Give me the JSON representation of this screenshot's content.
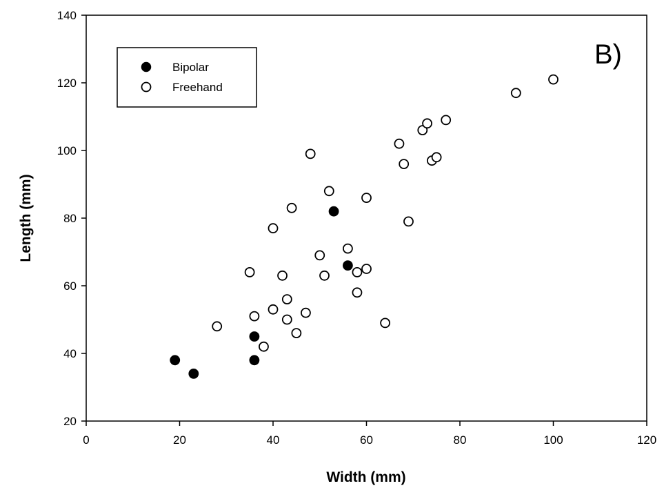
{
  "chart_data": {
    "type": "scatter",
    "panel_label": "B)",
    "xlabel": "Width (mm)",
    "ylabel": "Length (mm)",
    "xlim": [
      0,
      120
    ],
    "ylim": [
      20,
      140
    ],
    "xticks": [
      0,
      20,
      40,
      60,
      80,
      100,
      120
    ],
    "yticks": [
      20,
      40,
      60,
      80,
      100,
      120,
      140
    ],
    "grid": false,
    "legend_position": "top-left",
    "series": [
      {
        "name": "Bipolar",
        "marker": "filled-circle",
        "color": "#000000",
        "points": [
          {
            "x": 19,
            "y": 38
          },
          {
            "x": 23,
            "y": 34
          },
          {
            "x": 36,
            "y": 45
          },
          {
            "x": 36,
            "y": 38
          },
          {
            "x": 53,
            "y": 82
          },
          {
            "x": 56,
            "y": 66
          }
        ]
      },
      {
        "name": "Freehand",
        "marker": "open-circle",
        "color": "#000000",
        "points": [
          {
            "x": 28,
            "y": 48
          },
          {
            "x": 35,
            "y": 64
          },
          {
            "x": 36,
            "y": 51
          },
          {
            "x": 38,
            "y": 42
          },
          {
            "x": 40,
            "y": 77
          },
          {
            "x": 40,
            "y": 53
          },
          {
            "x": 42,
            "y": 63
          },
          {
            "x": 43,
            "y": 56
          },
          {
            "x": 43,
            "y": 50
          },
          {
            "x": 44,
            "y": 83
          },
          {
            "x": 45,
            "y": 46
          },
          {
            "x": 47,
            "y": 52
          },
          {
            "x": 48,
            "y": 99
          },
          {
            "x": 50,
            "y": 69
          },
          {
            "x": 51,
            "y": 63
          },
          {
            "x": 52,
            "y": 88
          },
          {
            "x": 56,
            "y": 71
          },
          {
            "x": 58,
            "y": 64
          },
          {
            "x": 58,
            "y": 58
          },
          {
            "x": 60,
            "y": 86
          },
          {
            "x": 60,
            "y": 65
          },
          {
            "x": 64,
            "y": 49
          },
          {
            "x": 67,
            "y": 102
          },
          {
            "x": 68,
            "y": 96
          },
          {
            "x": 69,
            "y": 79
          },
          {
            "x": 72,
            "y": 106
          },
          {
            "x": 73,
            "y": 108
          },
          {
            "x": 74,
            "y": 97
          },
          {
            "x": 75,
            "y": 98
          },
          {
            "x": 77,
            "y": 109
          },
          {
            "x": 92,
            "y": 117
          },
          {
            "x": 100,
            "y": 121
          }
        ]
      }
    ]
  }
}
